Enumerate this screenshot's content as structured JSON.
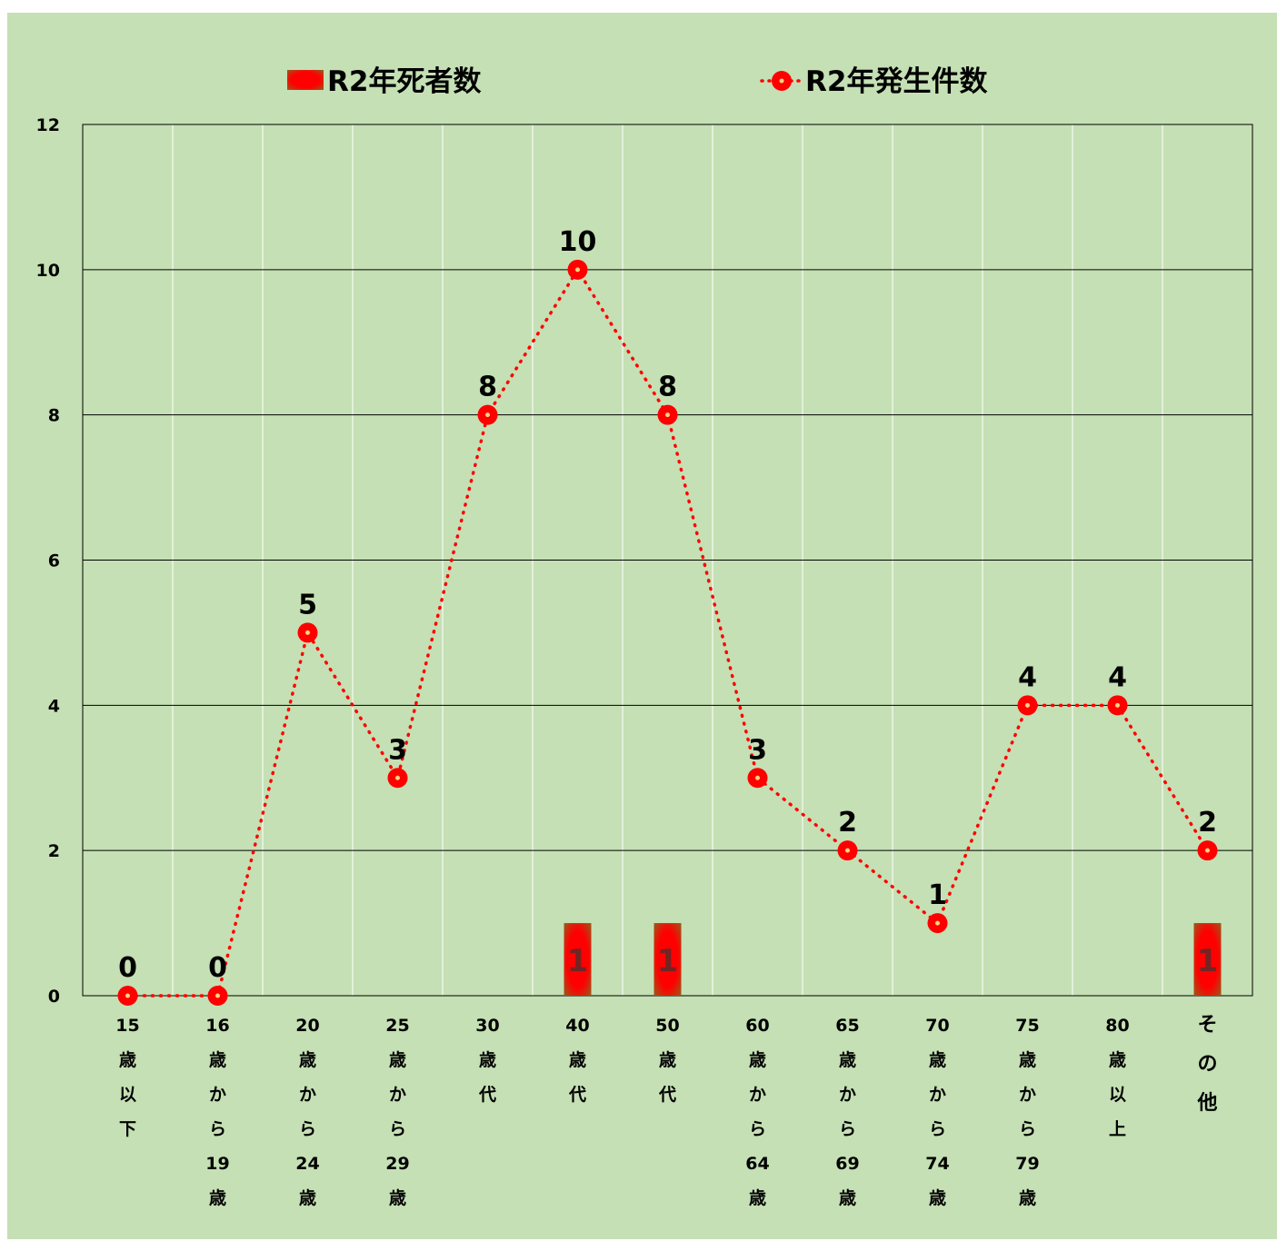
{
  "chart_data": {
    "type": "bar+line",
    "categories": [
      [
        "15",
        "歳",
        "以",
        "下"
      ],
      [
        "16",
        "歳",
        "か",
        "ら",
        "19",
        "歳"
      ],
      [
        "20",
        "歳",
        "か",
        "ら",
        "24",
        "歳"
      ],
      [
        "25",
        "歳",
        "か",
        "ら",
        "29",
        "歳"
      ],
      [
        "30",
        "歳",
        "代"
      ],
      [
        "40",
        "歳",
        "代"
      ],
      [
        "50",
        "歳",
        "代"
      ],
      [
        "60",
        "歳",
        "か",
        "ら",
        "64",
        "歳"
      ],
      [
        "65",
        "歳",
        "か",
        "ら",
        "69",
        "歳"
      ],
      [
        "70",
        "歳",
        "か",
        "ら",
        "74",
        "歳"
      ],
      [
        "75",
        "歳",
        "か",
        "ら",
        "79",
        "歳"
      ],
      [
        "80",
        "歳",
        "以",
        "上"
      ],
      [
        "そ",
        "の",
        "他"
      ]
    ],
    "series": [
      {
        "name": "R2年死者数",
        "type": "bar",
        "color": "#ff0000",
        "values": [
          0,
          0,
          0,
          0,
          0,
          1,
          1,
          0,
          0,
          0,
          0,
          0,
          1
        ],
        "data_labels": [
          "",
          "",
          "",
          "",
          "",
          "1",
          "1",
          "",
          "",
          "",
          "",
          "",
          "1"
        ]
      },
      {
        "name": "R2年発生件数",
        "type": "line",
        "color": "#ff0000",
        "values": [
          0,
          0,
          5,
          3,
          8,
          10,
          8,
          3,
          2,
          1,
          4,
          4,
          2
        ],
        "data_labels": [
          "0",
          "0",
          "5",
          "3",
          "8",
          "10",
          "8",
          "3",
          "2",
          "1",
          "4",
          "4",
          "2"
        ]
      }
    ],
    "ylim": [
      0,
      12
    ],
    "yticks": [
      "0",
      "2",
      "4",
      "6",
      "8",
      "10",
      "12"
    ],
    "grid": true,
    "legend_position": "top",
    "background": "#c5e0b4"
  }
}
